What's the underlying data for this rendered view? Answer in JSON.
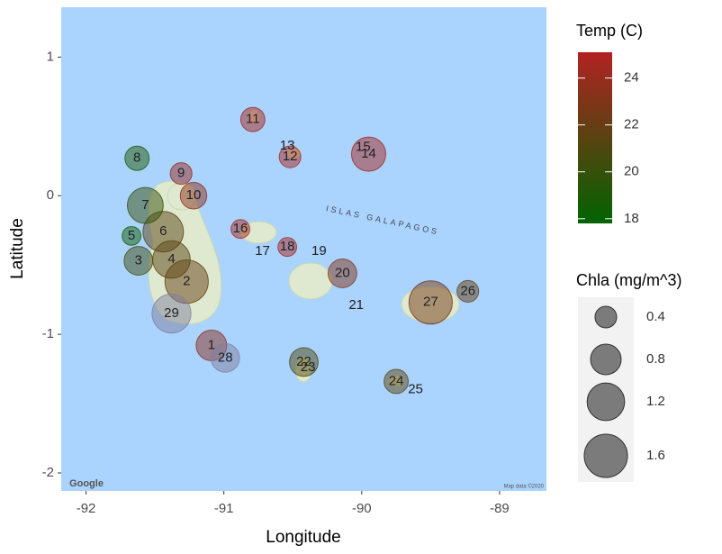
{
  "chart_data": {
    "type": "scatter",
    "x_label": "Longitude",
    "y_label": "Latitude",
    "xlim": [
      -92.18,
      -88.66
    ],
    "ylim": [
      -2.13,
      1.36
    ],
    "xticks": [
      -92,
      -91,
      -90,
      -89
    ],
    "yticks": [
      -2,
      -1,
      0,
      1
    ],
    "labels": [
      "1",
      "2",
      "3",
      "4",
      "5",
      "6",
      "7",
      "8",
      "9",
      "10",
      "11",
      "12",
      "13",
      "14",
      "15",
      "16",
      "17",
      "18",
      "19",
      "20",
      "21",
      "22",
      "23",
      "24",
      "25",
      "26",
      "27",
      "28",
      "29"
    ],
    "x": [
      -91.09,
      -91.27,
      -91.62,
      -91.38,
      -91.67,
      -91.44,
      -91.57,
      -91.63,
      -91.31,
      -91.22,
      -90.79,
      -90.52,
      -90.54,
      -89.95,
      -89.99,
      -90.88,
      -90.72,
      -90.54,
      -90.31,
      -90.14,
      -90.04,
      -90.42,
      -90.39,
      -89.75,
      -89.61,
      -89.23,
      -89.5,
      -90.99,
      -91.38
    ],
    "y": [
      -1.08,
      -0.62,
      -0.47,
      -0.46,
      -0.29,
      -0.26,
      -0.07,
      0.27,
      0.16,
      0.0,
      0.55,
      0.28,
      0.36,
      0.3,
      0.35,
      -0.24,
      -0.4,
      -0.37,
      -0.4,
      -0.56,
      -0.79,
      -1.2,
      -1.24,
      -1.34,
      -1.4,
      -0.69,
      -0.77,
      -1.17,
      -0.85
    ],
    "temp": [
      23.5,
      22,
      20.5,
      21.5,
      18.5,
      21.5,
      20,
      19,
      24,
      23.5,
      24.5,
      24.5,
      null,
      24.5,
      null,
      24.5,
      null,
      24.5,
      null,
      23,
      null,
      21,
      null,
      21.5,
      null,
      22,
      22.5,
      null,
      null
    ],
    "chla": [
      0.8,
      1.6,
      0.7,
      1.2,
      0.3,
      1.4,
      1.1,
      0.5,
      0.4,
      0.6,
      0.5,
      0.4,
      null,
      1.0,
      null,
      0.3,
      null,
      0.3,
      null,
      0.7,
      null,
      0.7,
      null,
      0.5,
      null,
      0.4,
      1.6,
      0.7,
      1.3
    ],
    "color_legend": {
      "title": "Temp (C)",
      "lim": [
        17.8,
        25.1
      ],
      "ticks": [
        18,
        20,
        22,
        24
      ],
      "low": "#006400",
      "high": "#b22222"
    },
    "size_legend": {
      "title": "Chla (mg/m^3)",
      "breaks": [
        0.4,
        0.8,
        1.2,
        1.6
      ]
    },
    "na_color": "#7f7f9f",
    "background": "#aad3fe",
    "map_annotations": [
      "ISLAS GALAPAGOS",
      "Google",
      "Map data ©2020"
    ]
  }
}
